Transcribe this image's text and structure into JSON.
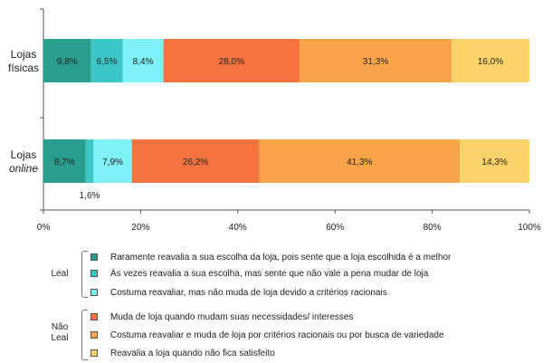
{
  "chart_data": {
    "type": "bar",
    "orientation": "horizontal",
    "stacked": "percent",
    "xlim": [
      0,
      100
    ],
    "x_ticks": [
      "0%",
      "20%",
      "40%",
      "60%",
      "80%",
      "100%"
    ],
    "categories": [
      {
        "line1": "Lojas",
        "line2": "físicas",
        "italic_line2": false
      },
      {
        "line1": "Lojas",
        "line2": "online",
        "italic_line2": true
      }
    ],
    "series": [
      {
        "name": "Raramente reavalia a sua escolha da loja, pois sente que a loja escolhida é a melhor",
        "color": "#2a9d8f",
        "values": [
          9.8,
          8.7
        ],
        "labels": [
          "9,8%",
          "8,7%"
        ]
      },
      {
        "name": "Às vezes reavalia a sua escolha, mas sente que não vale a pena mudar de loja",
        "color": "#3cc6c6",
        "values": [
          6.5,
          1.6
        ],
        "labels": [
          "6,5%",
          "1,6%"
        ]
      },
      {
        "name": "Costuma reavaliar, mas não muda de loja devido a critérios racionais",
        "color": "#7ff0f5",
        "values": [
          8.4,
          7.9
        ],
        "labels": [
          "8,4%",
          "7,9%"
        ]
      },
      {
        "name": "Muda de loja quando mudam suas necessidades/ interesses",
        "color": "#f5733f",
        "values": [
          28.0,
          26.2
        ],
        "labels": [
          "28,0%",
          "26,2%"
        ]
      },
      {
        "name": "Costuma reavaliar e muda de loja por critérios racionais ou por busca de variedade",
        "color": "#f8a54a",
        "values": [
          31.3,
          41.3
        ],
        "labels": [
          "31,3%",
          "41,3%"
        ]
      },
      {
        "name": "Reavalia a loja quando não fica satisfeito",
        "color": "#fcd36a",
        "values": [
          16.0,
          14.3
        ],
        "labels": [
          "16,0%",
          "14,3%"
        ]
      }
    ],
    "legend_groups": [
      {
        "label": "Leal",
        "series": [
          0,
          1,
          2
        ]
      },
      {
        "label_line1": "Não",
        "label_line2": "Leal",
        "series": [
          3,
          4,
          5
        ]
      }
    ],
    "legend_position": "bottom",
    "grid": false
  }
}
